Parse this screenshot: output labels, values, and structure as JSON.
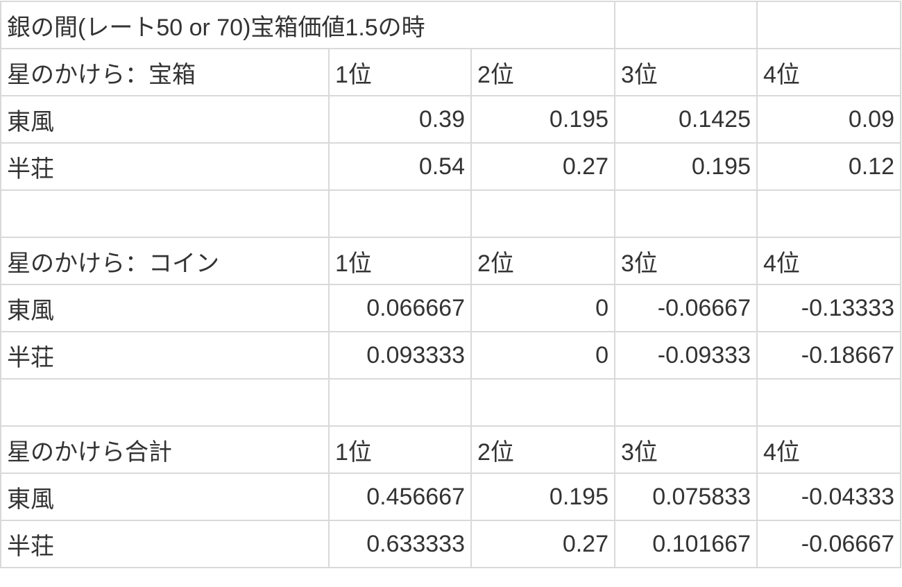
{
  "title": "銀の間(レート50 or 70)宝箱価値1.5の時",
  "sections": [
    {
      "header": "星のかけら：宝箱",
      "ranks": [
        "1位",
        "2位",
        "3位",
        "4位"
      ],
      "rows": [
        {
          "label": "東風",
          "values": [
            "0.39",
            "0.195",
            "0.1425",
            "0.09"
          ]
        },
        {
          "label": "半荘",
          "values": [
            "0.54",
            "0.27",
            "0.195",
            "0.12"
          ]
        }
      ]
    },
    {
      "header": "星のかけら：コイン",
      "ranks": [
        "1位",
        "2位",
        "3位",
        "4位"
      ],
      "rows": [
        {
          "label": "東風",
          "values": [
            "0.066667",
            "0",
            "-0.06667",
            "-0.13333"
          ]
        },
        {
          "label": "半荘",
          "values": [
            "0.093333",
            "0",
            "-0.09333",
            "-0.18667"
          ]
        }
      ]
    },
    {
      "header": "星のかけら合計",
      "ranks": [
        "1位",
        "2位",
        "3位",
        "4位"
      ],
      "rows": [
        {
          "label": "東風",
          "values": [
            "0.456667",
            "0.195",
            "0.075833",
            "-0.04333"
          ]
        },
        {
          "label": "半荘",
          "values": [
            "0.633333",
            "0.27",
            "0.101667",
            "-0.06667"
          ]
        }
      ]
    }
  ]
}
